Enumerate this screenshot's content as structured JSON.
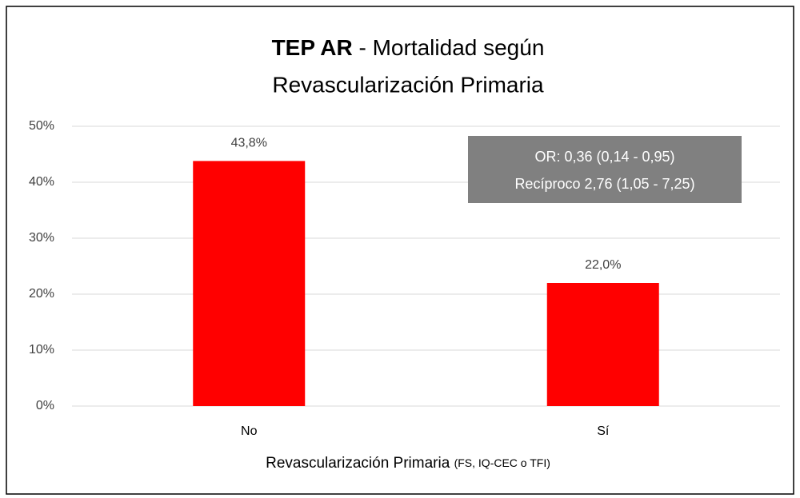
{
  "chart_data": {
    "type": "bar",
    "title": [
      "TEP AR",
      "- Mortalidad según",
      "Revascularización Primaria"
    ],
    "x_label": [
      "Revascularización Primaria",
      "(FS, IQ-CEC o TFI)"
    ],
    "annotation": [
      "OR: 0,36 (0,14 - 0,95)",
      "Recíproco 2,76 (1,05 - 7,25)"
    ],
    "categories": [
      "No",
      "Sí"
    ],
    "values": [
      43.8,
      22.0
    ],
    "value_labels": [
      "43,8%",
      "22,0%"
    ],
    "color": "#ff0000",
    "ylim": [
      0,
      50
    ],
    "yticks": [
      {
        "value": 0,
        "label": "0%"
      },
      {
        "value": 10,
        "label": "10%"
      },
      {
        "value": 20,
        "label": "20%"
      },
      {
        "value": 30,
        "label": "30%"
      },
      {
        "value": 40,
        "label": "40%"
      },
      {
        "value": 50,
        "label": "50%"
      }
    ],
    "grid": true
  }
}
